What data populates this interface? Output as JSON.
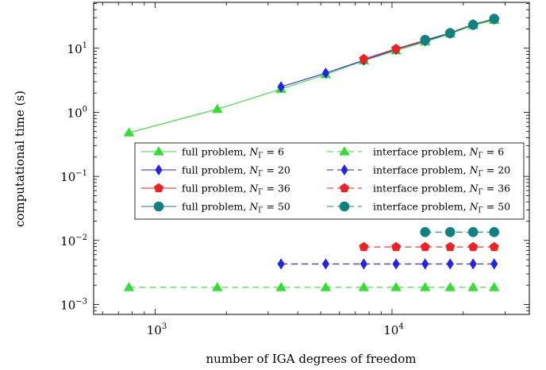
{
  "chart_data": {
    "type": "line",
    "title": "",
    "xlabel": "number of IGA degrees of freedom",
    "ylabel": "computational time (s)",
    "xscale": "log",
    "yscale": "log",
    "xlim": [
      550,
      38000
    ],
    "ylim": [
      0.0007,
      52
    ],
    "x_ticks": [
      {
        "value": 1000,
        "base": "10",
        "exp": "3"
      },
      {
        "value": 10000,
        "base": "10",
        "exp": "4"
      }
    ],
    "y_ticks": [
      {
        "value": 0.001,
        "base": "10",
        "exp": "−3"
      },
      {
        "value": 0.01,
        "base": "10",
        "exp": "−2"
      },
      {
        "value": 0.1,
        "base": "10",
        "exp": "−1"
      },
      {
        "value": 1,
        "base": "10",
        "exp": "0"
      },
      {
        "value": 10,
        "base": "10",
        "exp": "1"
      }
    ],
    "grid": false,
    "legend_placement": "center",
    "legend_columns": 2,
    "series": [
      {
        "name": "full problem, N_Γ = 6",
        "color": "#33dd33",
        "marker": "triangle",
        "dash": false,
        "x": [
          775,
          1830,
          3400,
          5250,
          7600,
          10400,
          13800,
          17600,
          22000,
          27000
        ],
        "y": [
          0.48,
          1.12,
          2.3,
          3.9,
          6.4,
          9.2,
          12.6,
          16.8,
          22.8,
          27.5
        ]
      },
      {
        "name": "full problem, N_Γ = 20",
        "color": "#2222ee",
        "marker": "diamond",
        "dash": false,
        "x": [
          3400,
          5250,
          7600,
          10400,
          13800,
          17600,
          22000,
          27000
        ],
        "y": [
          2.5,
          4.1,
          6.5,
          9.6,
          13.0,
          17.2,
          23.5,
          28.5
        ]
      },
      {
        "name": "full problem, N_Γ = 36",
        "color": "#ee2222",
        "marker": "pentagon",
        "dash": false,
        "x": [
          7600,
          10400,
          13800,
          17600,
          22000,
          27000
        ],
        "y": [
          6.8,
          9.8,
          13.3,
          17.5,
          23.5,
          28.8
        ]
      },
      {
        "name": "full problem, N_Γ = 50",
        "color": "#118080",
        "marker": "circle",
        "dash": false,
        "x": [
          13800,
          17600,
          22000,
          27000
        ],
        "y": [
          13.5,
          17.2,
          23.2,
          28.8
        ]
      },
      {
        "name": "interface problem, N_Γ = 6",
        "color": "#33dd33",
        "marker": "triangle",
        "dash": true,
        "x": [
          775,
          1830,
          3400,
          5250,
          7600,
          10400,
          13800,
          17600,
          22000,
          27000
        ],
        "y": [
          0.00185,
          0.00185,
          0.00185,
          0.00185,
          0.00185,
          0.00185,
          0.00185,
          0.00185,
          0.00185,
          0.00185
        ]
      },
      {
        "name": "interface problem, N_Γ = 20",
        "color": "#2222ee",
        "marker": "diamond",
        "dash": true,
        "x": [
          3400,
          5250,
          7600,
          10400,
          13800,
          17600,
          22000,
          27000
        ],
        "y": [
          0.0043,
          0.0043,
          0.0043,
          0.0043,
          0.0043,
          0.0043,
          0.0043,
          0.0043
        ]
      },
      {
        "name": "interface problem, N_Γ = 36",
        "color": "#ee2222",
        "marker": "pentagon",
        "dash": true,
        "x": [
          7600,
          10400,
          13800,
          17600,
          22000,
          27000
        ],
        "y": [
          0.0079,
          0.0079,
          0.0079,
          0.0079,
          0.0079,
          0.0079
        ]
      },
      {
        "name": "interface problem, N_Γ = 50",
        "color": "#118080",
        "marker": "circle",
        "dash": true,
        "x": [
          13800,
          17600,
          22000,
          27000
        ],
        "y": [
          0.0135,
          0.0135,
          0.0135,
          0.0135
        ]
      }
    ]
  },
  "legend": [
    {
      "prefix": "full problem,",
      "value": "6"
    },
    {
      "prefix": "interface problem,",
      "value": "6"
    },
    {
      "prefix": "full problem,",
      "value": "20"
    },
    {
      "prefix": "interface problem,",
      "value": "20"
    },
    {
      "prefix": "full problem,",
      "value": "36"
    },
    {
      "prefix": "interface problem,",
      "value": "36"
    },
    {
      "prefix": "full problem,",
      "value": "50"
    },
    {
      "prefix": "interface problem,",
      "value": "50"
    }
  ],
  "legend_symbol": {
    "var": "N",
    "sub": "Γ",
    "eq": "="
  }
}
